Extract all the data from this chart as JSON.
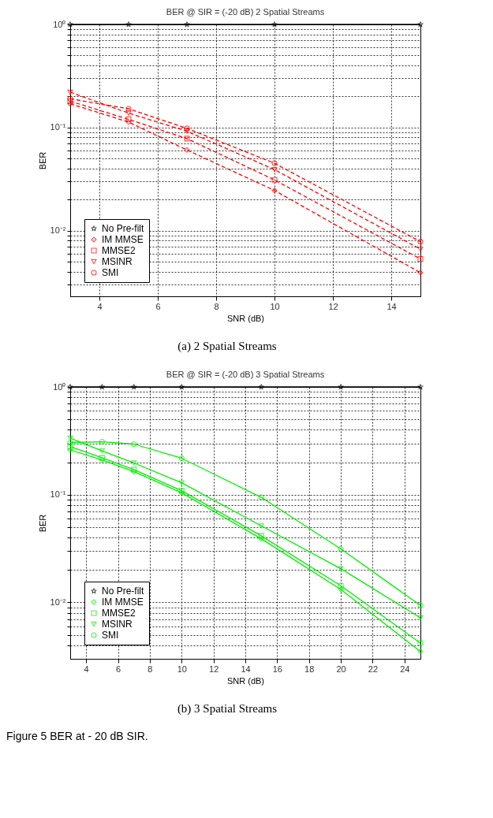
{
  "chart_data": [
    {
      "type": "line",
      "title": "BER @ SIR = (-20 dB) 2 Spatial Streams",
      "xlabel": "SNR (dB)",
      "ylabel": "BER",
      "log": "y",
      "grid": true,
      "legend": "bottom left",
      "annotations": [
        "(a) 2 Spatial Streams"
      ],
      "xlim": [
        3,
        15
      ],
      "xticks": [
        4,
        6,
        8,
        10,
        12,
        14
      ],
      "ylim": [
        0.0023,
        1
      ],
      "yticks": [
        {
          "value": 1,
          "label": "10⁰"
        },
        {
          "value": 0.9,
          "label": null
        },
        {
          "value": 0.8,
          "label": null
        },
        {
          "value": 0.7,
          "label": null
        },
        {
          "value": 0.6,
          "label": null
        },
        {
          "value": 0.5,
          "label": null
        },
        {
          "value": 0.4,
          "label": null
        },
        {
          "value": 0.3,
          "label": null
        },
        {
          "value": 0.2,
          "label": null
        },
        {
          "value": 0.1,
          "label": "10⁻¹"
        },
        {
          "value": 0.09,
          "label": null
        },
        {
          "value": 0.08,
          "label": null
        },
        {
          "value": 0.07,
          "label": null
        },
        {
          "value": 0.06,
          "label": null
        },
        {
          "value": 0.05,
          "label": null
        },
        {
          "value": 0.04,
          "label": null
        },
        {
          "value": 0.03,
          "label": null
        },
        {
          "value": 0.02,
          "label": null
        },
        {
          "value": 0.01,
          "label": "10⁻²"
        },
        {
          "value": 0.009,
          "label": null
        },
        {
          "value": 0.008,
          "label": null
        },
        {
          "value": 0.007,
          "label": null
        },
        {
          "value": 0.006,
          "label": null
        },
        {
          "value": 0.005,
          "label": null
        },
        {
          "value": 0.004,
          "label": null
        },
        {
          "value": 0.003,
          "label": null
        }
      ],
      "x": [
        3,
        5,
        7,
        10,
        15
      ],
      "series": [
        {
          "name": "No Pre-filt",
          "color": "#000000",
          "marker": "star",
          "line_style": "solid",
          "values": [
            1,
            1,
            1,
            1,
            1
          ]
        },
        {
          "name": "IM MMSE",
          "color": "#ff0000",
          "marker": "diamond",
          "line_style": "dashed",
          "values": [
            0.17,
            0.113,
            0.0605,
            0.0245,
            0.0039
          ]
        },
        {
          "name": "MMSE2",
          "color": "#ff0000",
          "marker": "square",
          "line_style": "dashed",
          "values": [
            0.18,
            0.12,
            0.078,
            0.031,
            0.0053
          ]
        },
        {
          "name": "MSINR",
          "color": "#ff0000",
          "marker": "triangle",
          "line_style": "dashed",
          "values": [
            0.22,
            0.138,
            0.092,
            0.039,
            0.0066
          ]
        },
        {
          "name": "SMI",
          "color": "#ff0000",
          "marker": "circle",
          "line_style": "dashed",
          "values": [
            0.19,
            0.152,
            0.098,
            0.045,
            0.0078
          ]
        }
      ]
    },
    {
      "type": "line",
      "title": "BER @ SIR = (-20 dB) 3 Spatial Streams",
      "xlabel": "SNR (dB)",
      "ylabel": "BER",
      "log": "y",
      "grid": true,
      "legend": "bottom left",
      "annotations": [
        "(b) 3 Spatial Streams",
        "Figure 5 BER at - 20 dB SIR."
      ],
      "xlim": [
        3,
        25
      ],
      "xticks": [
        4,
        6,
        8,
        10,
        12,
        14,
        16,
        18,
        20,
        22,
        24
      ],
      "ylim": [
        0.003,
        1
      ],
      "yticks": [
        {
          "value": 1,
          "label": "10⁰"
        },
        {
          "value": 0.9,
          "label": null
        },
        {
          "value": 0.8,
          "label": null
        },
        {
          "value": 0.7,
          "label": null
        },
        {
          "value": 0.6,
          "label": null
        },
        {
          "value": 0.5,
          "label": null
        },
        {
          "value": 0.4,
          "label": null
        },
        {
          "value": 0.3,
          "label": null
        },
        {
          "value": 0.2,
          "label": null
        },
        {
          "value": 0.1,
          "label": "10⁻¹"
        },
        {
          "value": 0.09,
          "label": null
        },
        {
          "value": 0.08,
          "label": null
        },
        {
          "value": 0.07,
          "label": null
        },
        {
          "value": 0.06,
          "label": null
        },
        {
          "value": 0.05,
          "label": null
        },
        {
          "value": 0.04,
          "label": null
        },
        {
          "value": 0.03,
          "label": null
        },
        {
          "value": 0.02,
          "label": null
        },
        {
          "value": 0.01,
          "label": "10⁻²"
        },
        {
          "value": 0.009,
          "label": null
        },
        {
          "value": 0.008,
          "label": null
        },
        {
          "value": 0.007,
          "label": null
        },
        {
          "value": 0.006,
          "label": null
        },
        {
          "value": 0.005,
          "label": null
        },
        {
          "value": 0.004,
          "label": null
        }
      ],
      "x": [
        3,
        5,
        7,
        10,
        15,
        20,
        25
      ],
      "series": [
        {
          "name": "No Pre-filt",
          "color": "#000000",
          "marker": "star",
          "line_style": "solid",
          "values": [
            1,
            1,
            1,
            1,
            1,
            1,
            1
          ]
        },
        {
          "name": "IM MMSE",
          "color": "#00ee00",
          "marker": "diamond",
          "line_style": "solid",
          "values": [
            0.26,
            0.21,
            0.164,
            0.104,
            0.039,
            0.0132,
            0.0035
          ]
        },
        {
          "name": "MMSE2",
          "color": "#00ee00",
          "marker": "square",
          "line_style": "solid",
          "values": [
            0.28,
            0.22,
            0.171,
            0.109,
            0.0416,
            0.0143,
            0.0042
          ]
        },
        {
          "name": "MSINR",
          "color": "#00ee00",
          "marker": "triangle",
          "line_style": "solid",
          "values": [
            0.335,
            0.255,
            0.197,
            0.129,
            0.0514,
            0.0206,
            0.0072
          ]
        },
        {
          "name": "SMI",
          "color": "#00ee00",
          "marker": "circle",
          "line_style": "solid",
          "values": [
            0.305,
            0.31,
            0.295,
            0.218,
            0.0946,
            0.0314,
            0.0094
          ]
        }
      ]
    }
  ]
}
